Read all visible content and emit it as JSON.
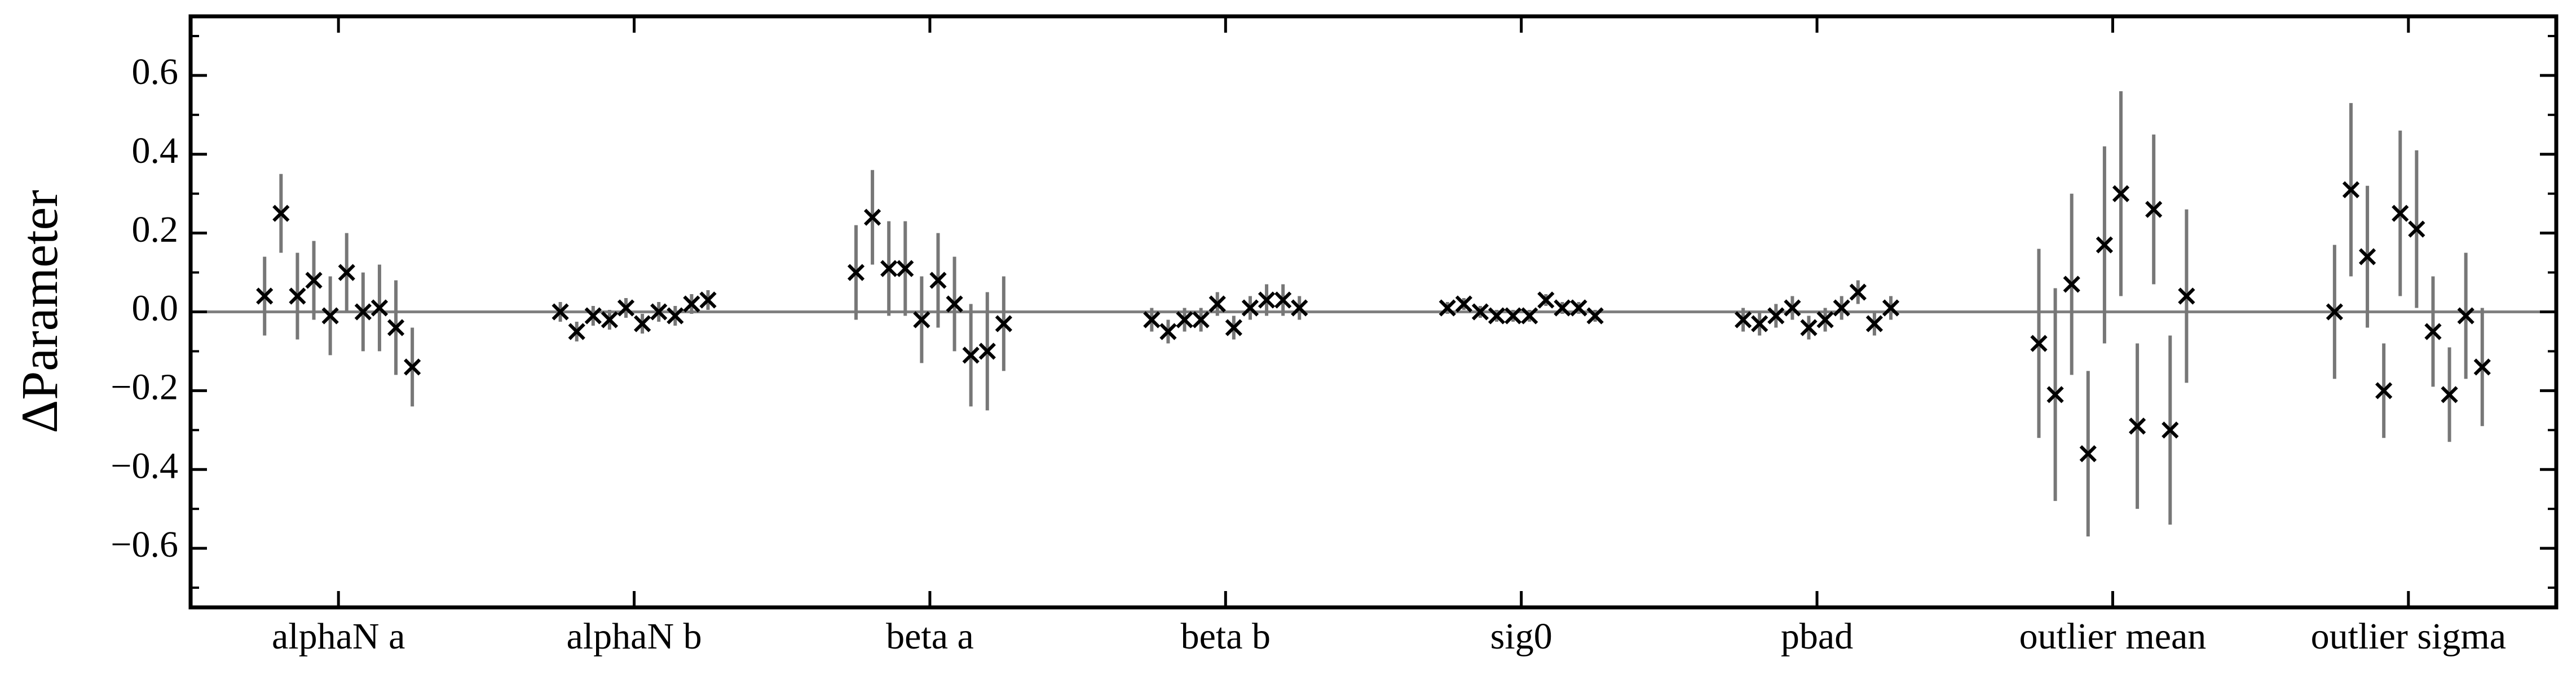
{
  "chart_data": {
    "type": "errorbar",
    "ylabel": "ΔParameter",
    "categories": [
      "alphaN a",
      "alphaN b",
      "beta a",
      "beta b",
      "sig0",
      "pbad",
      "outlier mean",
      "outlier sigma"
    ],
    "values": [
      [
        0.04,
        0.25,
        0.04,
        0.08,
        -0.01,
        0.1,
        0.0,
        0.01,
        -0.04,
        -0.14
      ],
      [
        0.0,
        -0.05,
        -0.01,
        -0.02,
        0.01,
        -0.03,
        0.0,
        -0.01,
        0.02,
        0.03
      ],
      [
        0.1,
        0.24,
        0.11,
        0.11,
        -0.02,
        0.08,
        0.02,
        -0.11,
        -0.1,
        -0.03
      ],
      [
        -0.02,
        -0.05,
        -0.02,
        -0.02,
        0.02,
        -0.04,
        0.01,
        0.03,
        0.03,
        0.01
      ],
      [
        0.01,
        0.02,
        0.0,
        -0.01,
        -0.01,
        -0.01,
        0.03,
        0.01,
        0.01,
        -0.01
      ],
      [
        -0.02,
        -0.03,
        -0.01,
        0.01,
        -0.04,
        -0.02,
        0.01,
        0.05,
        -0.03,
        0.01
      ],
      [
        -0.08,
        -0.21,
        0.07,
        -0.36,
        0.17,
        0.3,
        -0.29,
        0.26,
        -0.3,
        0.04
      ],
      [
        0.0,
        0.31,
        0.14,
        -0.2,
        0.25,
        0.21,
        -0.05,
        -0.21,
        -0.01,
        -0.14
      ]
    ],
    "errors": [
      [
        0.1,
        0.1,
        0.11,
        0.1,
        0.1,
        0.1,
        0.1,
        0.11,
        0.12,
        0.1
      ],
      [
        0.025,
        0.025,
        0.025,
        0.025,
        0.025,
        0.025,
        0.025,
        0.025,
        0.025,
        0.025
      ],
      [
        0.12,
        0.12,
        0.12,
        0.12,
        0.11,
        0.12,
        0.12,
        0.13,
        0.15,
        0.12
      ],
      [
        0.03,
        0.03,
        0.03,
        0.03,
        0.03,
        0.03,
        0.03,
        0.04,
        0.04,
        0.03
      ],
      [
        0.015,
        0.015,
        0.015,
        0.015,
        0.015,
        0.015,
        0.015,
        0.015,
        0.015,
        0.015
      ],
      [
        0.03,
        0.03,
        0.03,
        0.03,
        0.03,
        0.03,
        0.03,
        0.03,
        0.03,
        0.03
      ],
      [
        0.24,
        0.27,
        0.23,
        0.21,
        0.25,
        0.26,
        0.21,
        0.19,
        0.24,
        0.22
      ],
      [
        0.17,
        0.22,
        0.18,
        0.12,
        0.21,
        0.2,
        0.14,
        0.12,
        0.16,
        0.15
      ]
    ],
    "marker_color": "#000000",
    "errorbar_color": "#777777",
    "hline": 0,
    "ylim": [
      -0.75,
      0.75
    ],
    "yticks": [
      {
        "value": -0.6,
        "label": "−0.6"
      },
      {
        "value": -0.4,
        "label": "−0.4"
      },
      {
        "value": -0.2,
        "label": "−0.2"
      },
      {
        "value": 0,
        "label": "0.0"
      },
      0.2,
      0.4,
      0.6
    ],
    "yminorticks": [
      -0.7,
      -0.5,
      -0.3,
      -0.1,
      0.1,
      0.3,
      0.5,
      0.7
    ]
  }
}
